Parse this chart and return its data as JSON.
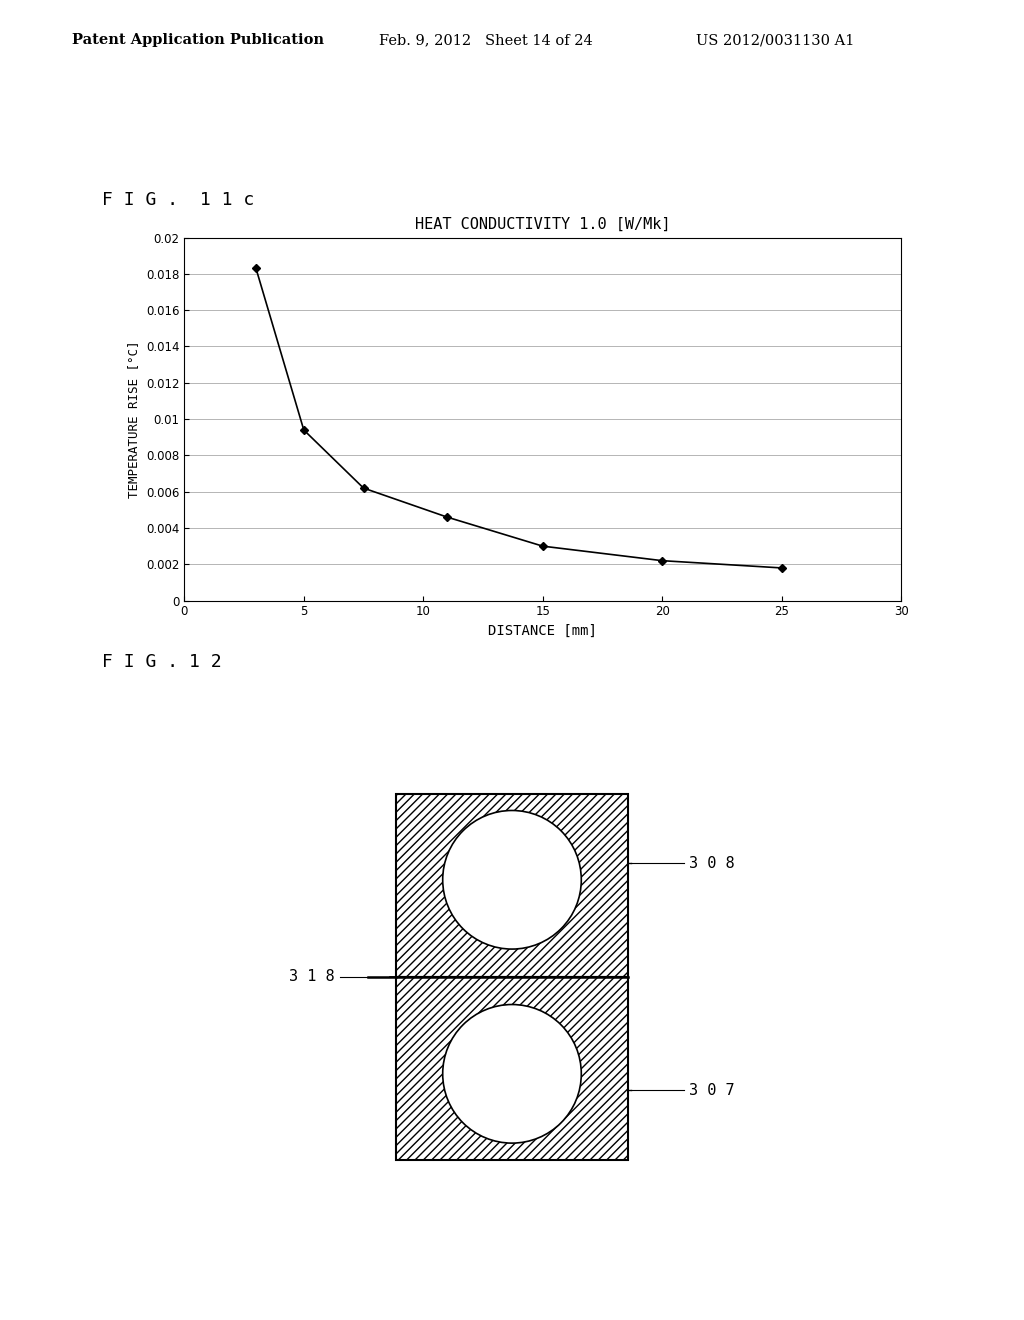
{
  "header_left": "Patent Application Publication",
  "header_mid": "Feb. 9, 2012   Sheet 14 of 24",
  "header_right": "US 2012/0031130 A1",
  "fig11c_label": "F I G .  1 1 c",
  "chart_title": "HEAT CONDUCTIVITY 1.0 [W/Mk]",
  "ylabel": "TEMPERATURE RISE [°C]",
  "xlabel": "DISTANCE [mm]",
  "xlim": [
    0,
    30
  ],
  "ylim": [
    0,
    0.02
  ],
  "xticks": [
    0,
    5,
    10,
    15,
    20,
    25,
    30
  ],
  "yticks": [
    0,
    0.002,
    0.004,
    0.006,
    0.008,
    0.01,
    0.012,
    0.014,
    0.016,
    0.018,
    0.02
  ],
  "x_data": [
    3,
    5,
    7.5,
    11,
    15,
    20,
    25
  ],
  "y_data": [
    0.0183,
    0.0094,
    0.0062,
    0.0046,
    0.003,
    0.0022,
    0.0018
  ],
  "fig12_label": "F I G . 1 2",
  "label_308": "3 0 8",
  "label_307": "3 0 7",
  "label_318": "3 1 8",
  "background_color": "#ffffff",
  "line_color": "#000000",
  "marker_color": "#000000",
  "hatch_pattern": "////"
}
